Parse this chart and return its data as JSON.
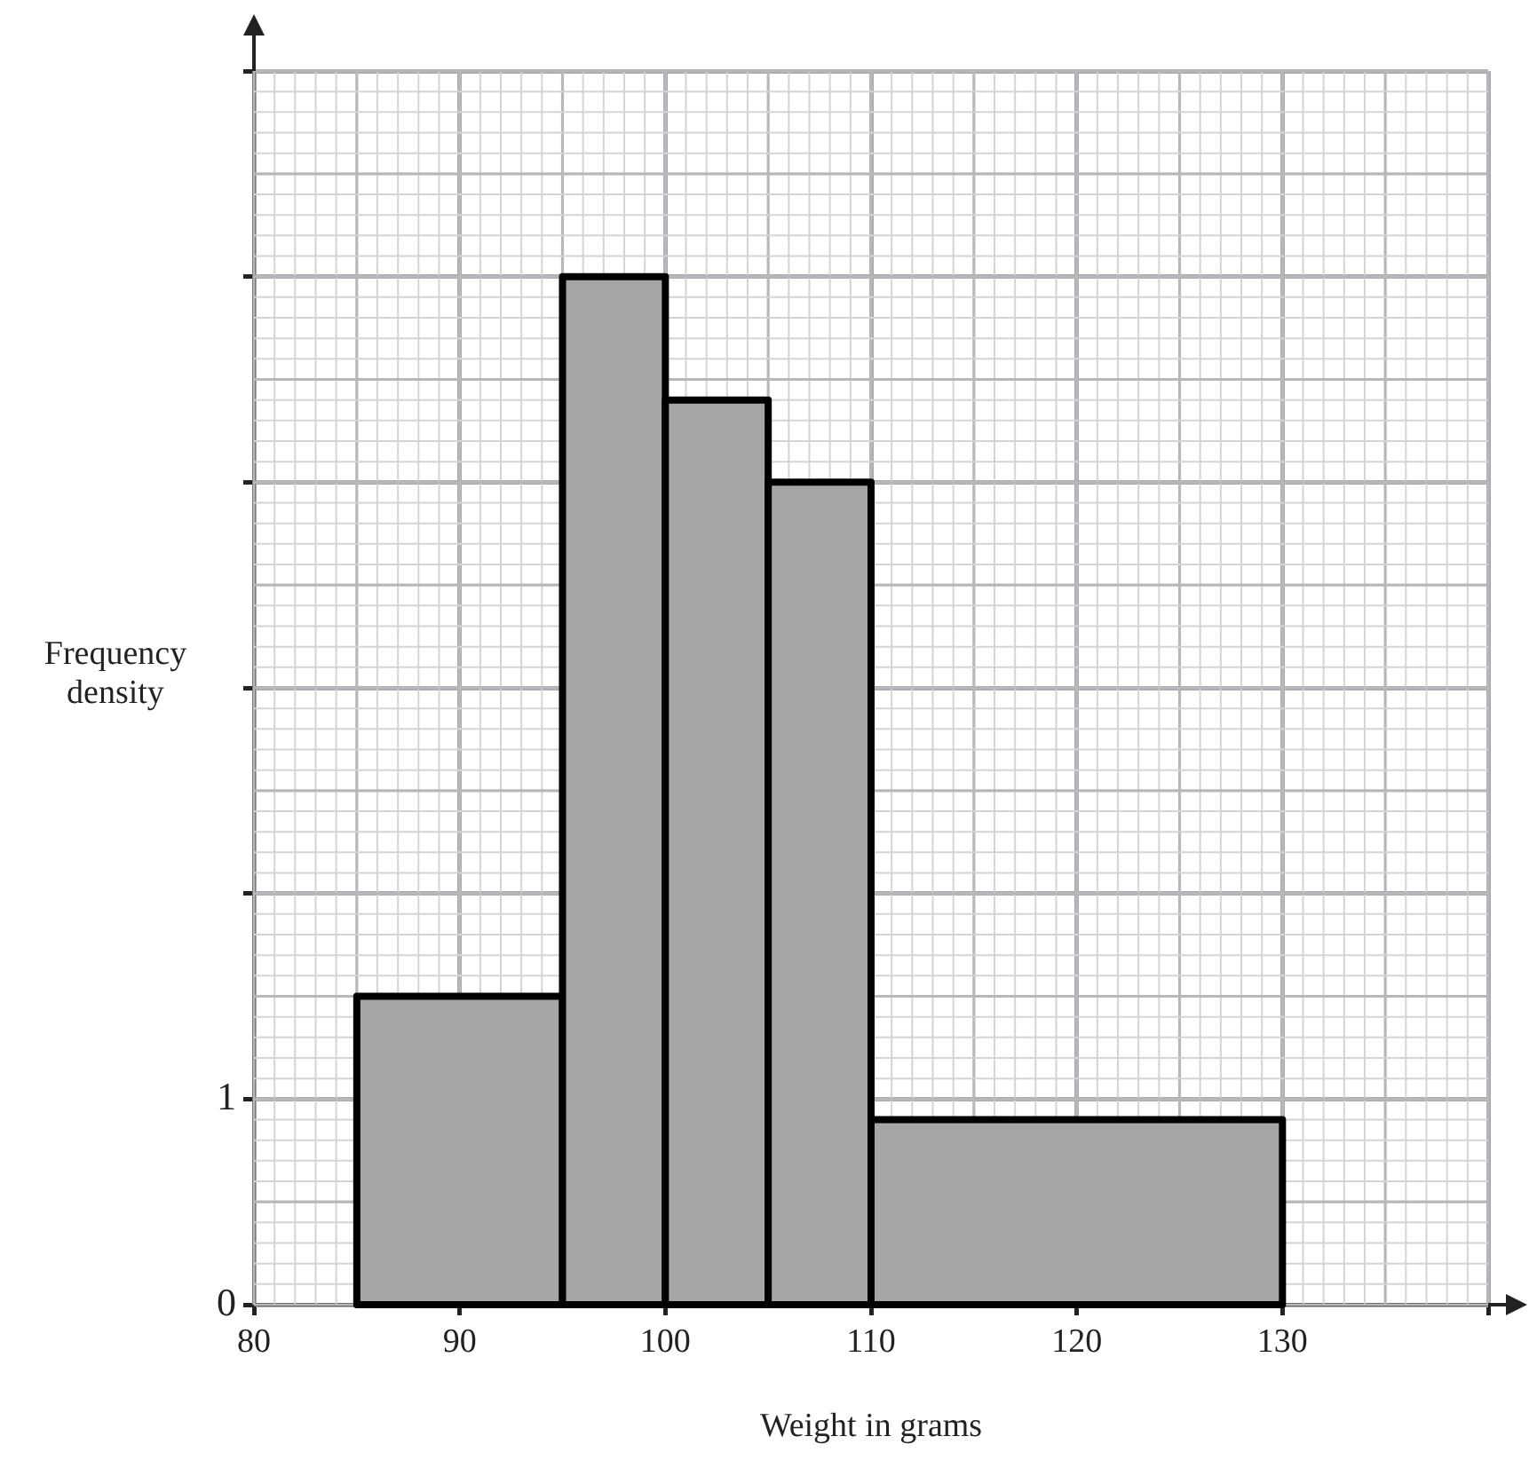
{
  "chart_data": {
    "type": "histogram",
    "xlabel": "Weight in grams",
    "ylabel": "Frequency density",
    "bins": [
      85,
      95,
      100,
      105,
      110,
      130
    ],
    "values": [
      1.5,
      5,
      4.4,
      4,
      0.9
    ],
    "color": "#a6a6a6",
    "xlim": [
      80,
      140
    ],
    "xticks": [
      80,
      90,
      100,
      110,
      120,
      130,
      {
        "value": 140,
        "label": null
      }
    ],
    "ylim": [
      0,
      6
    ],
    "yticks": [
      0,
      1,
      {
        "value": 2,
        "label": null
      },
      {
        "value": 3,
        "label": null
      },
      {
        "value": 4,
        "label": null
      },
      {
        "value": 5,
        "label": null
      },
      {
        "value": 6,
        "label": null
      }
    ],
    "grid": true,
    "legend": false
  }
}
